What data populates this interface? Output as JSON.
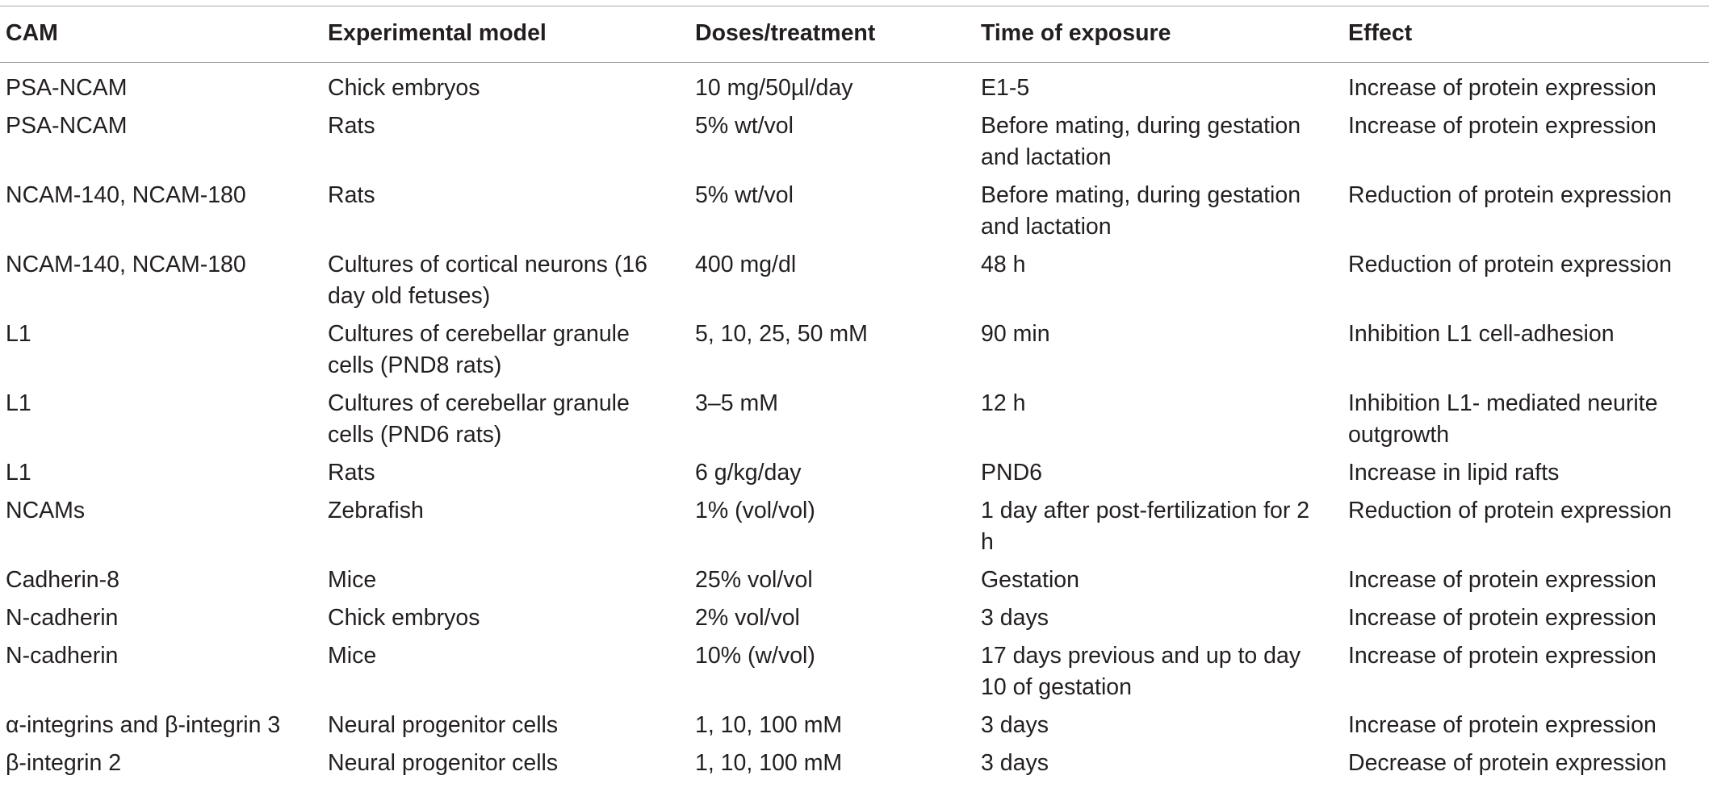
{
  "table": {
    "headers": [
      "CAM",
      "Experimental model",
      "Doses/treatment",
      "Time of exposure",
      "Effect"
    ],
    "rows": [
      [
        "PSA-NCAM",
        "Chick embryos",
        "10 mg/50µl/day",
        "E1-5",
        "Increase of protein expression"
      ],
      [
        "PSA-NCAM",
        "Rats",
        "5% wt/vol",
        "Before mating, during gestation and lactation",
        "Increase of protein expression"
      ],
      [
        "NCAM-140, NCAM-180",
        "Rats",
        "5% wt/vol",
        "Before mating, during gestation and lactation",
        "Reduction of protein expression"
      ],
      [
        "NCAM-140, NCAM-180",
        "Cultures of cortical neurons (16 day old fetuses)",
        "400 mg/dl",
        "48 h",
        "Reduction of protein expression"
      ],
      [
        "L1",
        "Cultures of cerebellar granule cells (PND8 rats)",
        "5, 10, 25, 50 mM",
        "90 min",
        "Inhibition L1 cell-adhesion"
      ],
      [
        "L1",
        "Cultures of cerebellar granule cells (PND6 rats)",
        "3–5 mM",
        "12 h",
        "Inhibition L1- mediated neurite outgrowth"
      ],
      [
        "L1",
        "Rats",
        "6 g/kg/day",
        "PND6",
        "Increase in lipid rafts"
      ],
      [
        "NCAMs",
        "Zebrafish",
        "1% (vol/vol)",
        "1 day after post-fertilization for 2 h",
        "Reduction of protein expression"
      ],
      [
        "Cadherin-8",
        "Mice",
        "25% vol/vol",
        "Gestation",
        "Increase of protein expression"
      ],
      [
        "N-cadherin",
        "Chick embryos",
        "2% vol/vol",
        "3 days",
        "Increase of protein expression"
      ],
      [
        "N-cadherin",
        "Mice",
        "10% (w/vol)",
        "17 days previous and up to day 10 of gestation",
        "Increase of protein expression"
      ],
      [
        "α-integrins and β-integrin 3",
        "Neural progenitor cells",
        "1, 10, 100 mM",
        "3 days",
        "Increase of protein expression"
      ],
      [
        "β-integrin 2",
        "Neural progenitor cells",
        "1, 10, 100 mM",
        "3 days",
        "Decrease of protein expression"
      ]
    ]
  }
}
